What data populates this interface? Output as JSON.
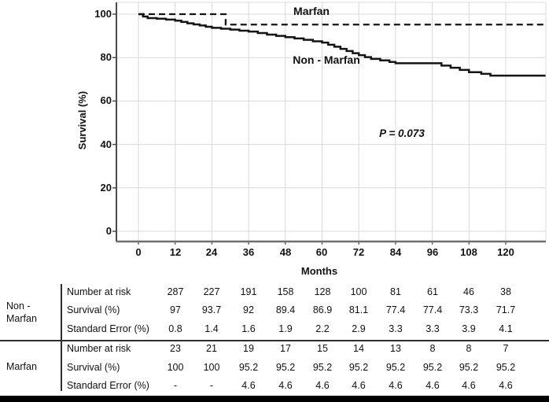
{
  "chart": {
    "y_axis": {
      "label": "Survival (%)",
      "ticks": [
        "100",
        "80",
        "60",
        "40",
        "20",
        "0"
      ]
    },
    "x_axis": {
      "label": "Months",
      "ticks": [
        "0",
        "12",
        "24",
        "36",
        "48",
        "60",
        "72",
        "84",
        "96",
        "108",
        "120"
      ]
    },
    "annotations": {
      "marfan_label": "Marfan",
      "nonmarfan_label": "Non - Marfan",
      "p_value": "P = 0.073"
    },
    "colors": {
      "line": "#141414",
      "grid": "#d9d9d9",
      "axis_left": "#4a4a4a",
      "axis_bottom": "#6e6e6e",
      "box": "#dcdcdc"
    }
  },
  "chart_data": {
    "type": "line",
    "subtype": "kaplan-meier-step",
    "xlabel": "Months",
    "ylabel": "Survival (%)",
    "xlim": [
      0,
      133
    ],
    "ylim": [
      0,
      100
    ],
    "x_ticks": [
      0,
      12,
      24,
      36,
      48,
      60,
      72,
      84,
      96,
      108,
      120
    ],
    "y_ticks": [
      0,
      20,
      40,
      60,
      80,
      100
    ],
    "grid": true,
    "annotation": "P = 0.073",
    "series": [
      {
        "name": "Marfan",
        "style": "dashed",
        "points": [
          [
            0,
            100
          ],
          [
            28.5,
            100
          ],
          [
            28.5,
            95.2
          ],
          [
            133,
            95.2
          ]
        ]
      },
      {
        "name": "Non - Marfan",
        "style": "solid",
        "points": [
          [
            0,
            100
          ],
          [
            1.5,
            98.9
          ],
          [
            3,
            98.2
          ],
          [
            6,
            97.9
          ],
          [
            9,
            97.5
          ],
          [
            12,
            97
          ],
          [
            14,
            96.4
          ],
          [
            16,
            95.8
          ],
          [
            18,
            95.3
          ],
          [
            20,
            94.8
          ],
          [
            22,
            94.2
          ],
          [
            24,
            93.7
          ],
          [
            27,
            93.3
          ],
          [
            30,
            92.9
          ],
          [
            33,
            92.4
          ],
          [
            36,
            92
          ],
          [
            39,
            91.3
          ],
          [
            42,
            90.6
          ],
          [
            45,
            90
          ],
          [
            48,
            89.4
          ],
          [
            51,
            88.8
          ],
          [
            54,
            88.2
          ],
          [
            57,
            87.5
          ],
          [
            60,
            86.9
          ],
          [
            62,
            85.9
          ],
          [
            64,
            85
          ],
          [
            66,
            84
          ],
          [
            68,
            83
          ],
          [
            70,
            82
          ],
          [
            72,
            81.1
          ],
          [
            74,
            80.2
          ],
          [
            76,
            79.4
          ],
          [
            79,
            78.7
          ],
          [
            82,
            78
          ],
          [
            84,
            77.4
          ],
          [
            96,
            77.4
          ],
          [
            99,
            76.3
          ],
          [
            102,
            75.3
          ],
          [
            105,
            74.3
          ],
          [
            108,
            73.3
          ],
          [
            112,
            72.5
          ],
          [
            115,
            71.7
          ],
          [
            133,
            71.7
          ]
        ]
      }
    ]
  },
  "table": {
    "months": [
      12,
      24,
      36,
      48,
      60,
      72,
      84,
      96,
      108,
      120
    ],
    "groups": [
      {
        "label_line1": "Non -",
        "label_line2": "Marfan",
        "rows": [
          {
            "label": "Number at risk",
            "values": [
              "287",
              "227",
              "191",
              "158",
              "128",
              "100",
              "81",
              "61",
              "46",
              "38"
            ]
          },
          {
            "label": "Survival (%)",
            "values": [
              "97",
              "93.7",
              "92",
              "89.4",
              "86.9",
              "81.1",
              "77.4",
              "77.4",
              "73.3",
              "71.7"
            ]
          },
          {
            "label": "Standard Error (%)",
            "values": [
              "0.8",
              "1.4",
              "1.6",
              "1.9",
              "2.2",
              "2.9",
              "3.3",
              "3.3",
              "3.9",
              "4.1"
            ]
          }
        ]
      },
      {
        "label_line1": "Marfan",
        "label_line2": "",
        "rows": [
          {
            "label": "Number at risk",
            "values": [
              "23",
              "21",
              "19",
              "17",
              "15",
              "14",
              "13",
              "8",
              "8",
              "7"
            ]
          },
          {
            "label": "Survival (%)",
            "values": [
              "100",
              "100",
              "95.2",
              "95.2",
              "95.2",
              "95.2",
              "95.2",
              "95.2",
              "95.2",
              "95.2"
            ]
          },
          {
            "label": "Standard Error (%)",
            "values": [
              "-",
              "-",
              "4.6",
              "4.6",
              "4.6",
              "4.6",
              "4.6",
              "4.6",
              "4.6",
              "4.6"
            ]
          }
        ]
      }
    ]
  }
}
